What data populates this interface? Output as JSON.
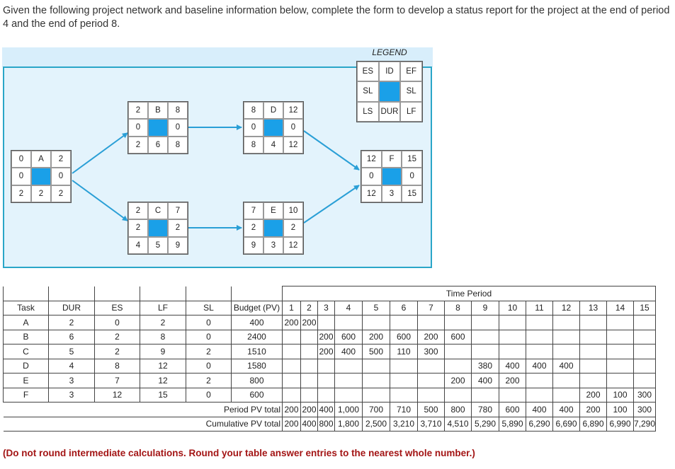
{
  "intro": "Given the following project network and baseline information below, complete the form to develop a status report for the project at the end of period 4 and the end of period 8.",
  "legend": {
    "title": "LEGEND",
    "cells": [
      "ES",
      "ID",
      "EF",
      "SL",
      "",
      "SL",
      "LS",
      "DUR",
      "LF"
    ]
  },
  "nodes": [
    {
      "id": "A",
      "cells": [
        "0",
        "A",
        "2",
        "0",
        "",
        "0",
        "2",
        "2",
        "2"
      ]
    },
    {
      "id": "B",
      "cells": [
        "2",
        "B",
        "8",
        "0",
        "",
        "0",
        "2",
        "6",
        "8"
      ]
    },
    {
      "id": "C",
      "cells": [
        "2",
        "C",
        "7",
        "2",
        "",
        "2",
        "4",
        "5",
        "9"
      ]
    },
    {
      "id": "D",
      "cells": [
        "8",
        "D",
        "12",
        "0",
        "",
        "0",
        "8",
        "4",
        "12"
      ]
    },
    {
      "id": "E",
      "cells": [
        "7",
        "E",
        "10",
        "2",
        "",
        "2",
        "9",
        "3",
        "12"
      ]
    },
    {
      "id": "F",
      "cells": [
        "12",
        "F",
        "15",
        "0",
        "",
        "0",
        "12",
        "3",
        "15"
      ]
    }
  ],
  "colors": {
    "highlight": "#1aa0e8",
    "panel": "#d8eefb",
    "arrow": "#2a9fd6",
    "panel_border": "#2aa6c8",
    "note": "#a31515"
  },
  "table": {
    "time_period_label": "Time Period",
    "headers": [
      "Task",
      "DUR",
      "ES",
      "LF",
      "SL",
      "Budget (PV)",
      "1",
      "2",
      "3",
      "4",
      "5",
      "6",
      "7",
      "8",
      "9",
      "10",
      "11",
      "12",
      "13",
      "14",
      "15"
    ],
    "rows": [
      {
        "task": "A",
        "dur": "2",
        "es": "0",
        "lf": "2",
        "sl": "0",
        "pv": "400",
        "periods": [
          "200",
          "200",
          "",
          "",
          "",
          "",
          "",
          "",
          "",
          "",
          "",
          "",
          "",
          "",
          ""
        ]
      },
      {
        "task": "B",
        "dur": "6",
        "es": "2",
        "lf": "8",
        "sl": "0",
        "pv": "2400",
        "periods": [
          "",
          "",
          "200",
          "600",
          "200",
          "600",
          "200",
          "600",
          "",
          "",
          "",
          "",
          "",
          "",
          ""
        ]
      },
      {
        "task": "C",
        "dur": "5",
        "es": "2",
        "lf": "9",
        "sl": "2",
        "pv": "1510",
        "periods": [
          "",
          "",
          "200",
          "400",
          "500",
          "110",
          "300",
          "",
          "",
          "",
          "",
          "",
          "",
          "",
          ""
        ]
      },
      {
        "task": "D",
        "dur": "4",
        "es": "8",
        "lf": "12",
        "sl": "0",
        "pv": "1580",
        "periods": [
          "",
          "",
          "",
          "",
          "",
          "",
          "",
          "",
          "380",
          "400",
          "400",
          "400",
          "",
          "",
          ""
        ]
      },
      {
        "task": "E",
        "dur": "3",
        "es": "7",
        "lf": "12",
        "sl": "2",
        "pv": "800",
        "periods": [
          "",
          "",
          "",
          "",
          "",
          "",
          "",
          "200",
          "400",
          "200",
          "",
          "",
          "",
          "",
          ""
        ]
      },
      {
        "task": "F",
        "dur": "3",
        "es": "12",
        "lf": "15",
        "sl": "0",
        "pv": "600",
        "periods": [
          "",
          "",
          "",
          "",
          "",
          "",
          "",
          "",
          "",
          "",
          "",
          "",
          "200",
          "100",
          "300"
        ]
      }
    ],
    "period_total_label": "Period PV total",
    "period_totals": [
      "200",
      "200",
      "400",
      "1,000",
      "700",
      "710",
      "500",
      "800",
      "780",
      "600",
      "400",
      "400",
      "200",
      "100",
      "300"
    ],
    "cumulative_label": "Cumulative PV total",
    "cumulative_totals": [
      "200",
      "400",
      "800",
      "1,800",
      "2,500",
      "3,210",
      "3,710",
      "4,510",
      "5,290",
      "5,890",
      "6,290",
      "6,690",
      "6,890",
      "6,990",
      "7,290"
    ]
  },
  "note": "(Do not round intermediate calculations. Round your table answer entries to the nearest whole number.)"
}
